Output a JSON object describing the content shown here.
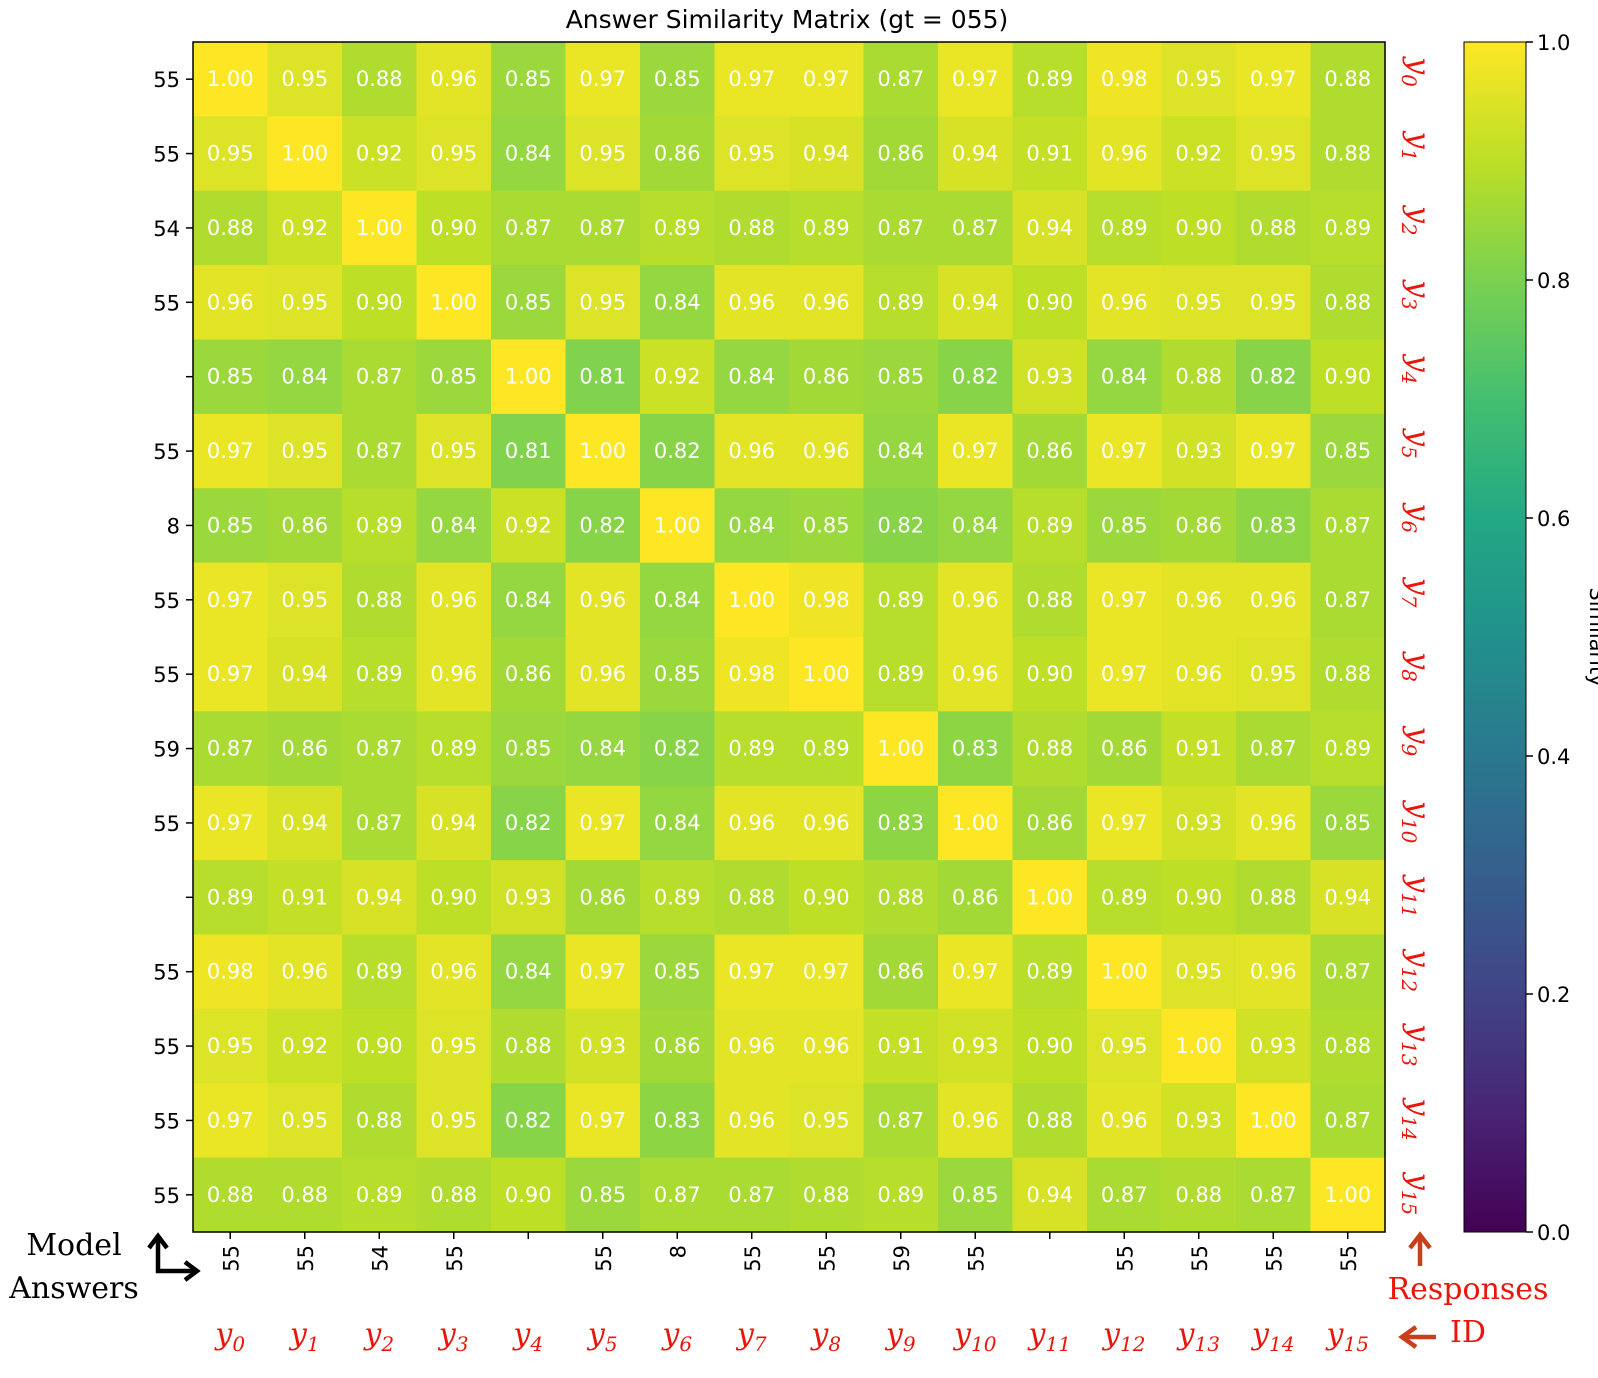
{
  "chart_data": {
    "type": "heatmap",
    "title": "Answer Similarity Matrix (gt = 055)",
    "row_labels": [
      "55",
      "55",
      "54",
      "55",
      "",
      "55",
      "8",
      "55",
      "55",
      "59",
      "55",
      "",
      "55",
      "55",
      "55",
      "55"
    ],
    "col_labels": [
      "55",
      "55",
      "54",
      "55",
      "",
      "55",
      "8",
      "55",
      "55",
      "59",
      "55",
      "",
      "55",
      "55",
      "55",
      "55"
    ],
    "response_ids": [
      {
        "base": "y",
        "sub": "0"
      },
      {
        "base": "y",
        "sub": "1"
      },
      {
        "base": "y",
        "sub": "2"
      },
      {
        "base": "y",
        "sub": "3"
      },
      {
        "base": "y",
        "sub": "4"
      },
      {
        "base": "y",
        "sub": "5"
      },
      {
        "base": "y",
        "sub": "6"
      },
      {
        "base": "y",
        "sub": "7"
      },
      {
        "base": "y",
        "sub": "8"
      },
      {
        "base": "y",
        "sub": "9"
      },
      {
        "base": "y",
        "sub": "10"
      },
      {
        "base": "y",
        "sub": "11"
      },
      {
        "base": "y",
        "sub": "12"
      },
      {
        "base": "y",
        "sub": "13"
      },
      {
        "base": "y",
        "sub": "14"
      },
      {
        "base": "y",
        "sub": "15"
      }
    ],
    "values": [
      [
        1.0,
        0.95,
        0.88,
        0.96,
        0.85,
        0.97,
        0.85,
        0.97,
        0.97,
        0.87,
        0.97,
        0.89,
        0.98,
        0.95,
        0.97,
        0.88
      ],
      [
        0.95,
        1.0,
        0.92,
        0.95,
        0.84,
        0.95,
        0.86,
        0.95,
        0.94,
        0.86,
        0.94,
        0.91,
        0.96,
        0.92,
        0.95,
        0.88
      ],
      [
        0.88,
        0.92,
        1.0,
        0.9,
        0.87,
        0.87,
        0.89,
        0.88,
        0.89,
        0.87,
        0.87,
        0.94,
        0.89,
        0.9,
        0.88,
        0.89
      ],
      [
        0.96,
        0.95,
        0.9,
        1.0,
        0.85,
        0.95,
        0.84,
        0.96,
        0.96,
        0.89,
        0.94,
        0.9,
        0.96,
        0.95,
        0.95,
        0.88
      ],
      [
        0.85,
        0.84,
        0.87,
        0.85,
        1.0,
        0.81,
        0.92,
        0.84,
        0.86,
        0.85,
        0.82,
        0.93,
        0.84,
        0.88,
        0.82,
        0.9
      ],
      [
        0.97,
        0.95,
        0.87,
        0.95,
        0.81,
        1.0,
        0.82,
        0.96,
        0.96,
        0.84,
        0.97,
        0.86,
        0.97,
        0.93,
        0.97,
        0.85
      ],
      [
        0.85,
        0.86,
        0.89,
        0.84,
        0.92,
        0.82,
        1.0,
        0.84,
        0.85,
        0.82,
        0.84,
        0.89,
        0.85,
        0.86,
        0.83,
        0.87
      ],
      [
        0.97,
        0.95,
        0.88,
        0.96,
        0.84,
        0.96,
        0.84,
        1.0,
        0.98,
        0.89,
        0.96,
        0.88,
        0.97,
        0.96,
        0.96,
        0.87
      ],
      [
        0.97,
        0.94,
        0.89,
        0.96,
        0.86,
        0.96,
        0.85,
        0.98,
        1.0,
        0.89,
        0.96,
        0.9,
        0.97,
        0.96,
        0.95,
        0.88
      ],
      [
        0.87,
        0.86,
        0.87,
        0.89,
        0.85,
        0.84,
        0.82,
        0.89,
        0.89,
        1.0,
        0.83,
        0.88,
        0.86,
        0.91,
        0.87,
        0.89
      ],
      [
        0.97,
        0.94,
        0.87,
        0.94,
        0.82,
        0.97,
        0.84,
        0.96,
        0.96,
        0.83,
        1.0,
        0.86,
        0.97,
        0.93,
        0.96,
        0.85
      ],
      [
        0.89,
        0.91,
        0.94,
        0.9,
        0.93,
        0.86,
        0.89,
        0.88,
        0.9,
        0.88,
        0.86,
        1.0,
        0.89,
        0.9,
        0.88,
        0.94
      ],
      [
        0.98,
        0.96,
        0.89,
        0.96,
        0.84,
        0.97,
        0.85,
        0.97,
        0.97,
        0.86,
        0.97,
        0.89,
        1.0,
        0.95,
        0.96,
        0.87
      ],
      [
        0.95,
        0.92,
        0.9,
        0.95,
        0.88,
        0.93,
        0.86,
        0.96,
        0.96,
        0.91,
        0.93,
        0.9,
        0.95,
        1.0,
        0.93,
        0.88
      ],
      [
        0.97,
        0.95,
        0.88,
        0.95,
        0.82,
        0.97,
        0.83,
        0.96,
        0.95,
        0.87,
        0.96,
        0.88,
        0.96,
        0.93,
        1.0,
        0.87
      ],
      [
        0.88,
        0.88,
        0.89,
        0.88,
        0.9,
        0.85,
        0.87,
        0.87,
        0.88,
        0.89,
        0.85,
        0.94,
        0.87,
        0.88,
        0.87,
        1.0
      ]
    ],
    "value_format": "2-decimal",
    "colormap": "viridis",
    "color_range": [
      0.0,
      1.0
    ],
    "colorbar_ticks": [
      "0.0",
      "0.2",
      "0.4",
      "0.6",
      "0.8",
      "1.0"
    ],
    "colorbar_label": "Similarity",
    "grid": false,
    "legend": "colorbar-right"
  },
  "annotations": {
    "model_answers_line1": "Model",
    "model_answers_line2": "Answers",
    "responses_id_line1": "Responses",
    "responses_id_line2": "ID"
  },
  "colors": {
    "id_color": "#e8160c",
    "arrow_color": "#c8401a",
    "cell_text": "#ffffff"
  }
}
